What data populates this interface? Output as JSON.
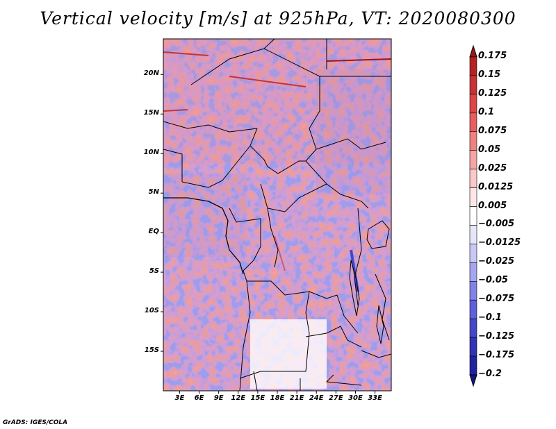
{
  "title": "Vertical velocity [m/s] at 925hPa, VT: 2020080300",
  "credit": "GrADS: IGES/COLA",
  "map": {
    "lat_labels": [
      {
        "label": "20N",
        "lat": 20
      },
      {
        "label": "15N",
        "lat": 15
      },
      {
        "label": "10N",
        "lat": 10
      },
      {
        "label": "5N",
        "lat": 5
      },
      {
        "label": "EQ",
        "lat": 0
      },
      {
        "label": "5S",
        "lat": -5
      },
      {
        "label": "10S",
        "lat": -10
      },
      {
        "label": "15S",
        "lat": -15
      }
    ],
    "lon_labels": [
      {
        "label": "3E",
        "lon": 3
      },
      {
        "label": "6E",
        "lon": 6
      },
      {
        "label": "9E",
        "lon": 9
      },
      {
        "label": "12E",
        "lon": 12
      },
      {
        "label": "15E",
        "lon": 15
      },
      {
        "label": "18E",
        "lon": 18
      },
      {
        "label": "21E",
        "lon": 21
      },
      {
        "label": "24E",
        "lon": 24
      },
      {
        "label": "27E",
        "lon": 27
      },
      {
        "label": "30E",
        "lon": 30
      },
      {
        "label": "33E",
        "lon": 33
      }
    ],
    "extent": {
      "lon_min": 0.5,
      "lon_max": 35.5,
      "lat_min": -20.0,
      "lat_max": 24.5
    }
  },
  "colorbar": {
    "levels": [
      "0.175",
      "0.15",
      "0.125",
      "0.1",
      "0.075",
      "0.05",
      "0.025",
      "0.0125",
      "0.005",
      "−0.005",
      "−0.0125",
      "−0.025",
      "−0.05",
      "−0.075",
      "−0.1",
      "−0.125",
      "−0.175",
      "−0.2"
    ],
    "colors": [
      "#a01414",
      "#b42222",
      "#c83232",
      "#dc4646",
      "#e65f5f",
      "#ee8282",
      "#f5a5a5",
      "#fac8c8",
      "#fde6e6",
      "#ffffff",
      "#e6e6fa",
      "#c8c8f5",
      "#a5a5f0",
      "#8282e6",
      "#5f5fdc",
      "#4646c8",
      "#3232b4",
      "#2222a0",
      "#141482"
    ]
  }
}
